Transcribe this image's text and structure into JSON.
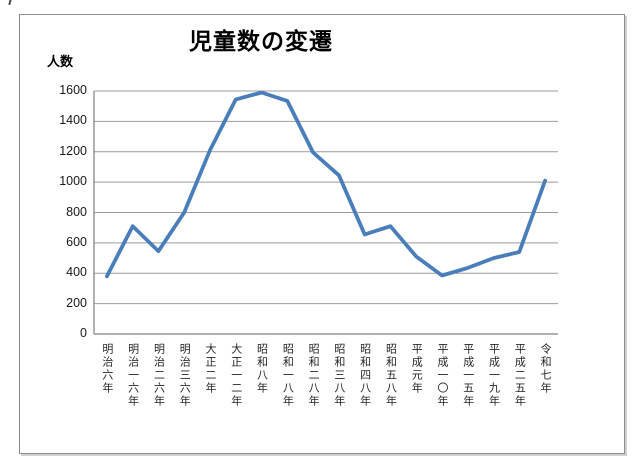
{
  "page": {
    "background_color": "#ffffff"
  },
  "chart_data": {
    "type": "line",
    "title": "児童数の変遷",
    "ylabel": "人数",
    "xlabel": "",
    "categories": [
      "明治六年",
      "明治一六年",
      "明治二六年",
      "明治三六年",
      "大正二年",
      "大正一二年",
      "昭和八年",
      "昭和一八年",
      "昭和二八年",
      "昭和三八年",
      "昭和四八年",
      "昭和五八年",
      "平成元年",
      "平成一〇年",
      "平成一五年",
      "平成一九年",
      "平成二五年",
      "令和七年"
    ],
    "values": [
      380,
      710,
      545,
      800,
      1210,
      1545,
      1590,
      1535,
      1195,
      1045,
      655,
      710,
      510,
      385,
      435,
      500,
      540,
      1010
    ],
    "ylim": [
      0,
      1600
    ],
    "ytick_step": 200,
    "yticks": [
      0,
      200,
      400,
      600,
      800,
      1000,
      1200,
      1400,
      1600
    ],
    "grid": "horizontal",
    "legend": "none",
    "series_name": "児童数",
    "line_color": "#4a7ebb",
    "gridline_color": "#9c9c9c",
    "axis_color": "#7f7f7f"
  }
}
